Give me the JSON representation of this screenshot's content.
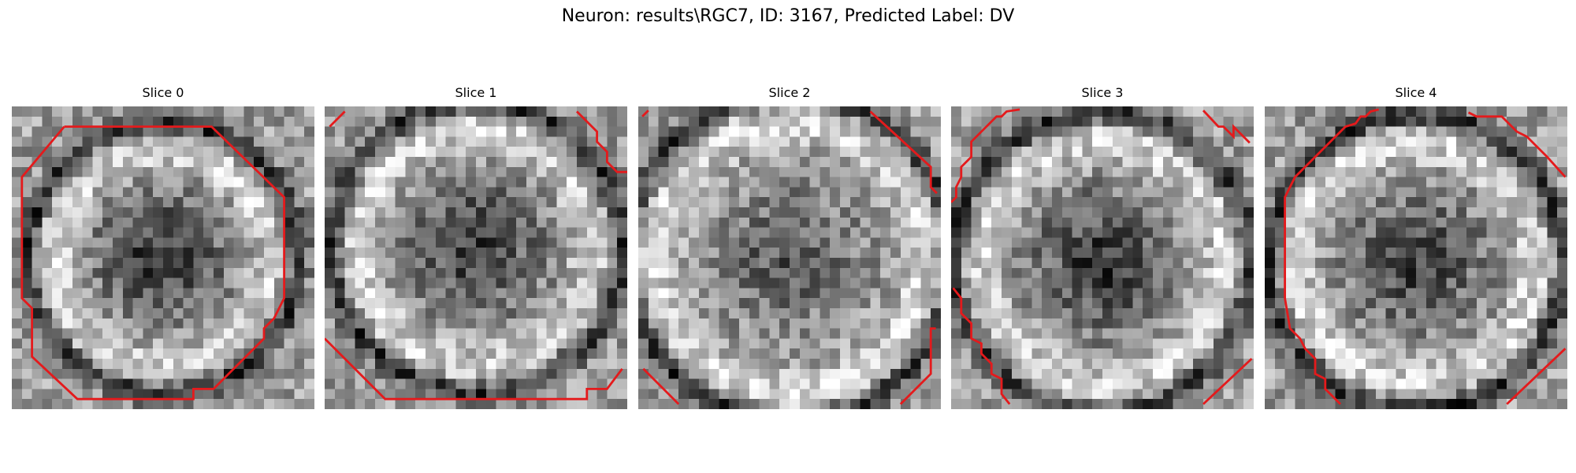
{
  "figure": {
    "title": "Neuron: results\\RGC7, ID: 3167, Predicted Label: DV"
  },
  "panels": [
    {
      "title": "Slice 0"
    },
    {
      "title": "Slice 1"
    },
    {
      "title": "Slice 2"
    },
    {
      "title": "Slice 3"
    },
    {
      "title": "Slice 4"
    }
  ],
  "colors": {
    "contour": "#e41a1c",
    "background": "#ffffff",
    "colormap": "gray"
  }
}
